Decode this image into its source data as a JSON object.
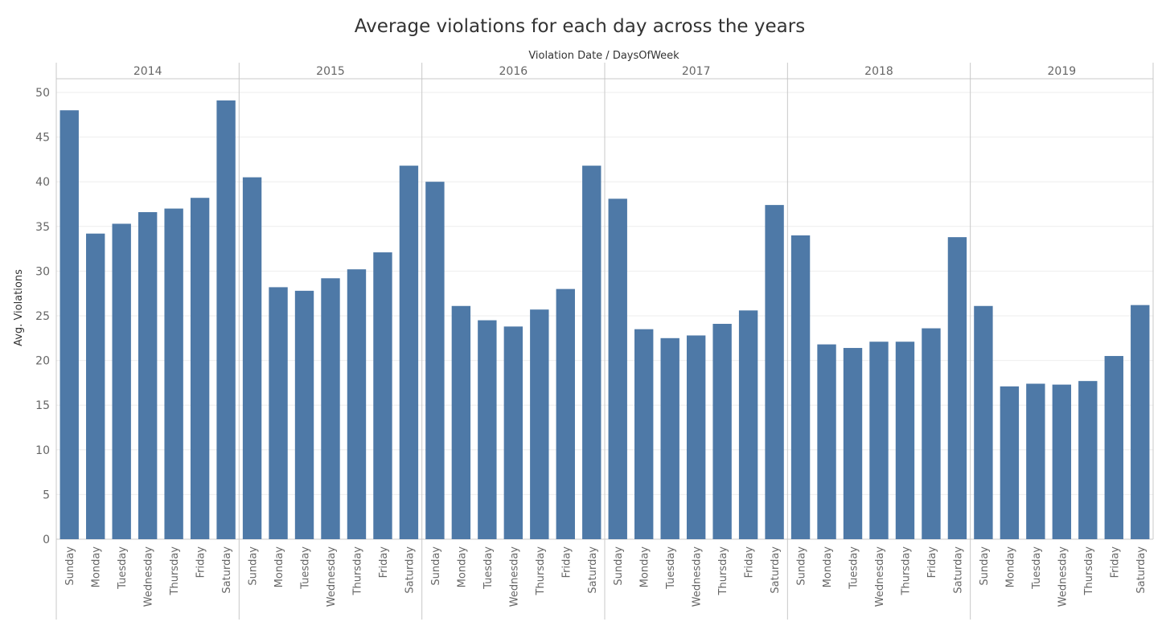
{
  "chart_data": {
    "type": "bar",
    "title": "Average violations for each day across the years",
    "column_header": "Violation Date  /  DaysOfWeek",
    "ylabel": "Avg. Violations",
    "xlabel": "",
    "ylim": [
      0,
      50
    ],
    "yticks": [
      "0",
      "5",
      "10",
      "15",
      "20",
      "25",
      "30",
      "35",
      "40",
      "45",
      "50"
    ],
    "grid": true,
    "bar_color": "#4e79a7",
    "categories": [
      "Sunday",
      "Monday",
      "Tuesday",
      "Wednesday",
      "Thursday",
      "Friday",
      "Saturday"
    ],
    "groups": [
      {
        "year": "2014",
        "values": [
          48.0,
          34.2,
          35.3,
          36.6,
          37.0,
          38.2,
          49.1
        ]
      },
      {
        "year": "2015",
        "values": [
          40.5,
          28.2,
          27.8,
          29.2,
          30.2,
          32.1,
          41.8
        ]
      },
      {
        "year": "2016",
        "values": [
          40.0,
          26.1,
          24.5,
          23.8,
          25.7,
          28.0,
          41.8
        ]
      },
      {
        "year": "2017",
        "values": [
          38.1,
          23.5,
          22.5,
          22.8,
          24.1,
          25.6,
          37.4
        ]
      },
      {
        "year": "2018",
        "values": [
          34.0,
          21.8,
          21.4,
          22.1,
          22.1,
          23.6,
          33.8
        ]
      },
      {
        "year": "2019",
        "values": [
          26.1,
          17.1,
          17.4,
          17.3,
          17.7,
          20.5,
          26.2
        ]
      }
    ]
  }
}
